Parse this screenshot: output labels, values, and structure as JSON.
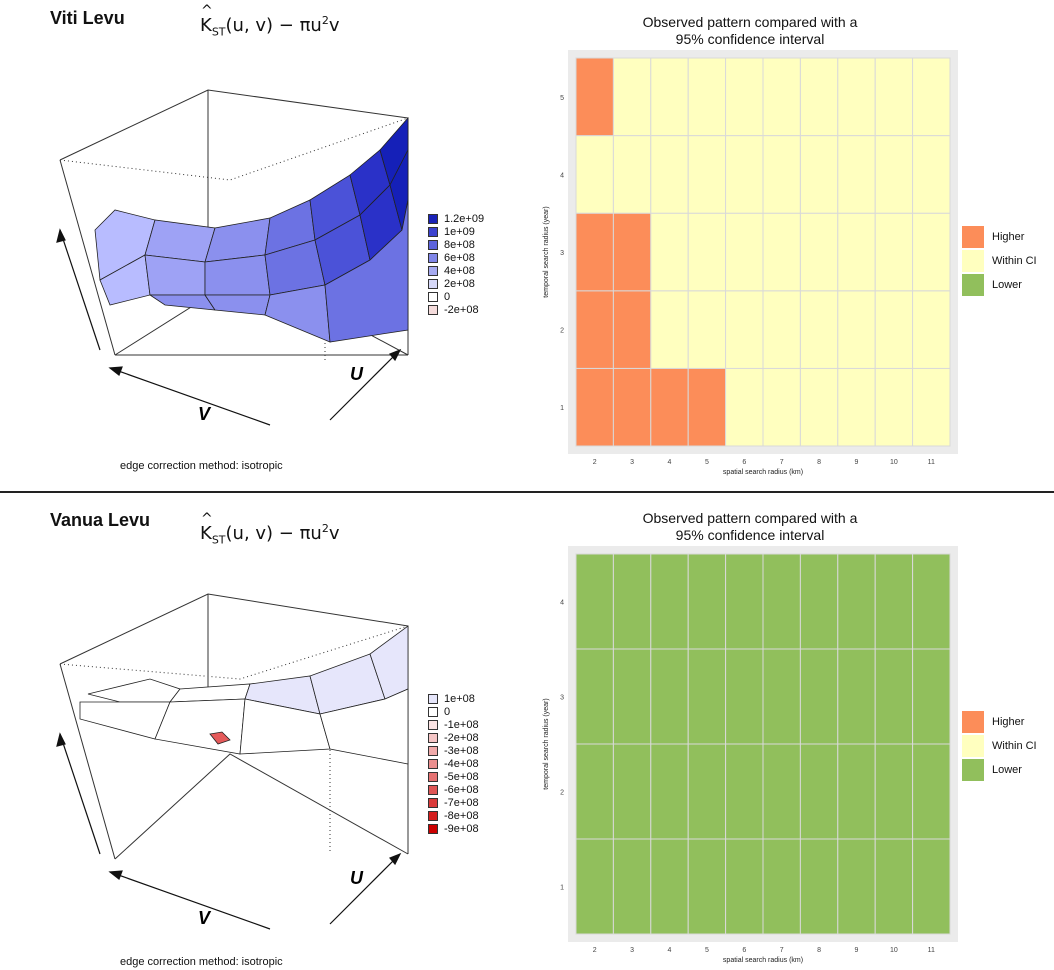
{
  "top": {
    "island": "Viti Levu",
    "formula": {
      "K": "K",
      "sub": "ST",
      "args": "(u, v) − πu",
      "sup": "2",
      "tail": "v"
    },
    "edge_label": "edge correction method: isotropic",
    "axis_v": "V",
    "axis_u": "U",
    "surface_colors": [
      "#b8bcff",
      "#9ea2f5",
      "#8b90ee",
      "#6c72e3",
      "#4b52d8",
      "#2a31c8",
      "#1520b8"
    ],
    "legend": [
      {
        "label": "1.2e+09",
        "color": "#1a22b8"
      },
      {
        "label": "1e+09",
        "color": "#3c43cf"
      },
      {
        "label": "8e+08",
        "color": "#5d63dc"
      },
      {
        "label": "6e+08",
        "color": "#8086e8"
      },
      {
        "label": "4e+08",
        "color": "#a6aaf0"
      },
      {
        "label": "2e+08",
        "color": "#d6d8f8"
      },
      {
        "label": "0",
        "color": "#ffffff"
      },
      {
        "label": "-2e+08",
        "color": "#f5dcdc"
      }
    ]
  },
  "bottom": {
    "island": "Vanua Levu",
    "formula": {
      "K": "K",
      "sub": "ST",
      "args": "(u, v) − πu",
      "sup": "2",
      "tail": "v"
    },
    "edge_label": "edge correction method: isotropic",
    "axis_v": "V",
    "axis_u": "U",
    "legend": [
      {
        "label": "1e+08",
        "color": "#e6e6fb"
      },
      {
        "label": "0",
        "color": "#ffffff"
      },
      {
        "label": "-1e+08",
        "color": "#fbe3e3"
      },
      {
        "label": "-2e+08",
        "color": "#f5c6c6"
      },
      {
        "label": "-3e+08",
        "color": "#f0aaaa"
      },
      {
        "label": "-4e+08",
        "color": "#ea8e8e"
      },
      {
        "label": "-5e+08",
        "color": "#e57272"
      },
      {
        "label": "-6e+08",
        "color": "#df5656"
      },
      {
        "label": "-7e+08",
        "color": "#da3a3a"
      },
      {
        "label": "-8e+08",
        "color": "#d41e1e"
      },
      {
        "label": "-9e+08",
        "color": "#cc0000"
      }
    ]
  },
  "chart_data": [
    {
      "type": "heatmap",
      "title": "Observed pattern compared with a\n95% confidence interval",
      "xlabel": "spatial search radius (km)",
      "ylabel": "temporal search radius (year)",
      "x": [
        2,
        3,
        4,
        5,
        6,
        7,
        8,
        9,
        10,
        11
      ],
      "y": [
        1,
        2,
        3,
        4,
        5
      ],
      "categories": [
        "Higher",
        "Within CI",
        "Lower"
      ],
      "colors": {
        "Higher": "#fc8d59",
        "Within CI": "#ffffbf",
        "Lower": "#91bf5c"
      },
      "cells": [
        [
          "Higher",
          "Higher",
          "Higher",
          "Higher",
          "Within CI",
          "Within CI",
          "Within CI",
          "Within CI",
          "Within CI",
          "Within CI"
        ],
        [
          "Higher",
          "Higher",
          "Within CI",
          "Within CI",
          "Within CI",
          "Within CI",
          "Within CI",
          "Within CI",
          "Within CI",
          "Within CI"
        ],
        [
          "Higher",
          "Higher",
          "Within CI",
          "Within CI",
          "Within CI",
          "Within CI",
          "Within CI",
          "Within CI",
          "Within CI",
          "Within CI"
        ],
        [
          "Within CI",
          "Within CI",
          "Within CI",
          "Within CI",
          "Within CI",
          "Within CI",
          "Within CI",
          "Within CI",
          "Within CI",
          "Within CI"
        ],
        [
          "Higher",
          "Within CI",
          "Within CI",
          "Within CI",
          "Within CI",
          "Within CI",
          "Within CI",
          "Within CI",
          "Within CI",
          "Within CI"
        ]
      ],
      "legend_position": "right"
    },
    {
      "type": "heatmap",
      "title": "Observed pattern compared with a\n95% confidence interval",
      "xlabel": "spatial search radius (km)",
      "ylabel": "temporal search radius (year)",
      "x": [
        2,
        3,
        4,
        5,
        6,
        7,
        8,
        9,
        10,
        11
      ],
      "y": [
        1,
        2,
        3,
        4
      ],
      "categories": [
        "Higher",
        "Within CI",
        "Lower"
      ],
      "colors": {
        "Higher": "#fc8d59",
        "Within CI": "#ffffbf",
        "Lower": "#91bf5c"
      },
      "cells": [
        [
          "Lower",
          "Lower",
          "Lower",
          "Lower",
          "Lower",
          "Lower",
          "Lower",
          "Lower",
          "Lower",
          "Lower"
        ],
        [
          "Lower",
          "Lower",
          "Lower",
          "Lower",
          "Lower",
          "Lower",
          "Lower",
          "Lower",
          "Lower",
          "Lower"
        ],
        [
          "Lower",
          "Lower",
          "Lower",
          "Lower",
          "Lower",
          "Lower",
          "Lower",
          "Lower",
          "Lower",
          "Lower"
        ],
        [
          "Lower",
          "Lower",
          "Lower",
          "Lower",
          "Lower",
          "Lower",
          "Lower",
          "Lower",
          "Lower",
          "Lower"
        ]
      ],
      "legend_position": "right"
    }
  ]
}
